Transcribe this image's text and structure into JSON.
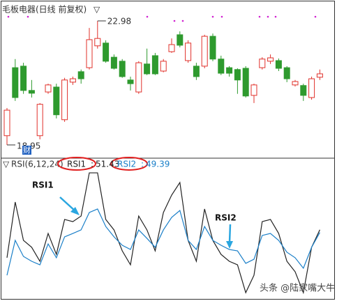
{
  "chart_data": [
    {
      "type": "candlestick",
      "title": "毛板电器(日线 前复权)",
      "max_label": 22.98,
      "min_label": 18.95,
      "event_label": "财",
      "up_color": "#e0302a",
      "down_color": "#2e9a2e",
      "ohlc": [
        [
          19.25,
          20.15,
          18.95,
          20.08
        ],
        [
          21.46,
          21.74,
          20.38,
          20.49
        ],
        [
          21.51,
          21.62,
          20.61,
          20.72
        ],
        [
          20.72,
          21.06,
          20.49,
          20.63
        ],
        [
          19.25,
          20.31,
          19.13,
          20.27
        ],
        [
          20.67,
          20.94,
          20.61,
          20.9
        ],
        [
          20.83,
          20.94,
          19.81,
          19.93
        ],
        [
          19.77,
          21.13,
          19.7,
          21.06
        ],
        [
          20.99,
          21.17,
          20.9,
          21.1
        ],
        [
          21.33,
          21.4,
          20.94,
          21.1
        ],
        [
          21.46,
          22.75,
          21.4,
          22.37
        ],
        [
          22.17,
          22.98,
          22.08,
          22.41
        ],
        [
          22.26,
          22.35,
          21.62,
          21.67
        ],
        [
          21.8,
          21.89,
          21.4,
          21.44
        ],
        [
          21.67,
          21.74,
          21.13,
          21.17
        ],
        [
          21.06,
          21.17,
          20.72,
          20.94
        ],
        [
          20.67,
          21.67,
          20.61,
          21.62
        ],
        [
          21.58,
          22.08,
          21.22,
          21.26
        ],
        [
          21.85,
          21.94,
          21.22,
          21.26
        ],
        [
          21.35,
          21.74,
          21.31,
          21.67
        ],
        [
          21.98,
          22.41,
          21.94,
          22.21
        ],
        [
          22.53,
          22.64,
          22.12,
          22.19
        ],
        [
          21.69,
          22.35,
          21.62,
          22.26
        ],
        [
          21.51,
          21.62,
          21.06,
          21.17
        ],
        [
          21.51,
          22.53,
          21.44,
          22.48
        ],
        [
          22.48,
          22.57,
          21.67,
          21.74
        ],
        [
          21.74,
          21.85,
          21.22,
          21.28
        ],
        [
          21.46,
          21.51,
          21.17,
          21.28
        ],
        [
          21.4,
          21.44,
          20.61,
          21.06
        ],
        [
          21.44,
          21.51,
          20.49,
          20.54
        ],
        [
          20.56,
          20.94,
          20.31,
          20.9
        ],
        [
          21.46,
          21.8,
          21.4,
          21.74
        ],
        [
          21.67,
          21.89,
          21.58,
          21.78
        ],
        [
          21.69,
          21.76,
          21.35,
          21.44
        ],
        [
          21.46,
          21.51,
          20.99,
          21.1
        ],
        [
          20.9,
          21.06,
          20.85,
          21.01
        ],
        [
          20.88,
          20.94,
          20.38,
          20.56
        ],
        [
          20.49,
          21.17,
          20.42,
          21.1
        ],
        [
          21.15,
          21.4,
          21.06,
          21.26
        ]
      ]
    },
    {
      "type": "line",
      "title": "RSI(6,12,24)",
      "ylim": [
        0,
        100
      ],
      "annotations": [
        "RSI1",
        "RSI2"
      ],
      "watermark": "头条 @陆家嘴大牛",
      "series": [
        {
          "name": "RSI1",
          "color": "#222222",
          "values": [
            30.8,
            71.8,
            43.6,
            38.5,
            28.2,
            48.7,
            33.3,
            59,
            57.4,
            61.5,
            93.3,
            93.3,
            59,
            51.3,
            35.9,
            25.6,
            61.5,
            51.3,
            35.9,
            64.1,
            76.9,
            86.2,
            43.6,
            28.2,
            66.7,
            43.6,
            33.3,
            28.2,
            25.6,
            5.1,
            17.9,
            57.4,
            59,
            48.7,
            28.2,
            20.5,
            5.1,
            38.5,
            51.43
          ]
        },
        {
          "name": "RSI2",
          "color": "#1a7fc8",
          "values": [
            17.9,
            43.6,
            31.8,
            28.2,
            25.6,
            41,
            30.8,
            46.2,
            48.7,
            51.3,
            64.1,
            66.7,
            53.8,
            46.2,
            40,
            36.9,
            51.3,
            45.1,
            38.5,
            51.3,
            60.5,
            65.6,
            43.6,
            36.9,
            53.8,
            43.6,
            40,
            36.9,
            35.9,
            26.7,
            29.7,
            47.2,
            48.7,
            43.6,
            34.9,
            30.8,
            23.1,
            38.5,
            49.39
          ]
        }
      ]
    }
  ]
}
